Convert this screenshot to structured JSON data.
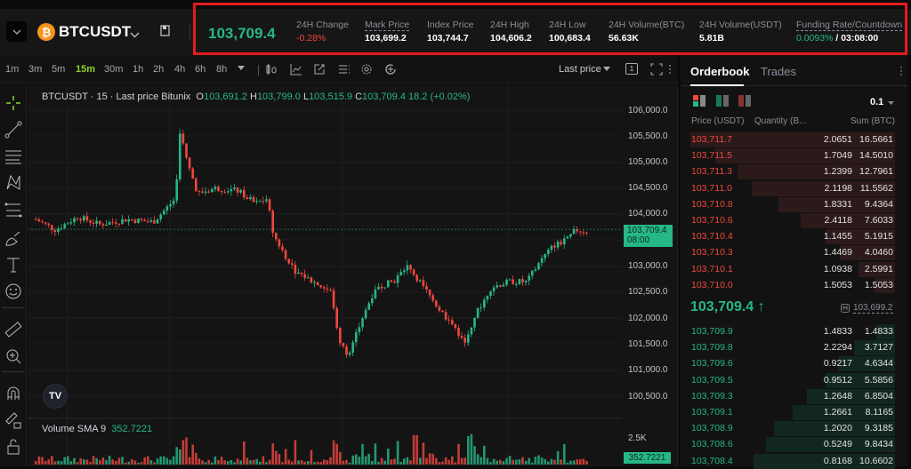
{
  "header": {
    "symbol": "BTCUSDT",
    "coin_glyph": "₿",
    "last_price": "103,709.4",
    "stats": [
      {
        "label": "24H Change",
        "value": "-0.28%"
      },
      {
        "label": "Mark Price",
        "value": "103,699.2"
      },
      {
        "label": "Index Price",
        "value": "103,744.7"
      },
      {
        "label": "24H High",
        "value": "104,606.2"
      },
      {
        "label": "24H Low",
        "value": "100,683.4"
      },
      {
        "label": "24H Volume(BTC)",
        "value": "56.63K"
      },
      {
        "label": "24H Volume(USDT)",
        "value": "5.81B"
      },
      {
        "label": "Funding Rate/Countdown",
        "value": "0.0093%",
        "countdown": "/ 03:08:00"
      }
    ]
  },
  "chart_toolbar": {
    "timeframes": [
      "1m",
      "3m",
      "5m",
      "15m",
      "30m",
      "1h",
      "2h",
      "4h",
      "6h",
      "8h"
    ],
    "active_timeframe": "15m",
    "price_type": "Last price",
    "layout_label": "1"
  },
  "chart": {
    "title": "BTCUSDT · 15 · Last price Bitunix",
    "ohlc": {
      "o_label": "O",
      "o": "103,691.2",
      "h_label": "H",
      "h": "103,799.0",
      "l_label": "L",
      "l": "103,515.9",
      "c_label": "C",
      "c": "103,709.4",
      "change": "18.2 (+0.02%)"
    },
    "y_ticks": [
      "106,000.0",
      "105,500.0",
      "105,000.0",
      "104,500.0",
      "104,000.0",
      "103,000.0",
      "102,500.0",
      "102,000.0",
      "101,500.0",
      "101,000.0",
      "100,500.0"
    ],
    "price_tag": {
      "price": "103,709.4",
      "time": "08:00"
    },
    "volume": {
      "label": "Volume SMA 9",
      "value": "352.7221",
      "axis_tick": "2.5K"
    },
    "logo_text": "TV",
    "colors": {
      "up": "#26b787",
      "down": "#f0473e",
      "bg": "#141414"
    }
  },
  "orderbook": {
    "tabs": [
      "Orderbook",
      "Trades"
    ],
    "precision": "0.1",
    "columns": [
      "Price (USDT)",
      "Quantity (B...",
      "Sum (BTC)"
    ],
    "asks": [
      {
        "price": "103,711.7",
        "qty": "2.0651",
        "sum": "16.5661",
        "depth": 100
      },
      {
        "price": "103,711.5",
        "qty": "1.7049",
        "sum": "14.5010",
        "depth": 88
      },
      {
        "price": "103,711.3",
        "qty": "1.2399",
        "sum": "12.7961",
        "depth": 77
      },
      {
        "price": "103,711.0",
        "qty": "2.1198",
        "sum": "11.5562",
        "depth": 70
      },
      {
        "price": "103,710.8",
        "qty": "1.8331",
        "sum": "9.4364",
        "depth": 57
      },
      {
        "price": "103,710.6",
        "qty": "2.4118",
        "sum": "7.6033",
        "depth": 46
      },
      {
        "price": "103,710.4",
        "qty": "1.1455",
        "sum": "5.1915",
        "depth": 34
      },
      {
        "price": "103,710.3",
        "qty": "1.4469",
        "sum": "4.0460",
        "depth": 27
      },
      {
        "price": "103,710.1",
        "qty": "1.0938",
        "sum": "2.5991",
        "depth": 18
      },
      {
        "price": "103,710.0",
        "qty": "1.5053",
        "sum": "1.5053",
        "depth": 10
      }
    ],
    "mid_price": "103,709.4 ↑",
    "mark_price": "103,699.2",
    "bids": [
      {
        "price": "103,709.9",
        "qty": "1.4833",
        "sum": "1.4833",
        "depth": 9
      },
      {
        "price": "103,709.8",
        "qty": "2.2294",
        "sum": "3.7127",
        "depth": 20
      },
      {
        "price": "103,709.6",
        "qty": "0.9217",
        "sum": "4.6344",
        "depth": 28
      },
      {
        "price": "103,709.5",
        "qty": "0.9512",
        "sum": "5.5856",
        "depth": 34
      },
      {
        "price": "103,709.3",
        "qty": "1.2648",
        "sum": "6.8504",
        "depth": 43
      },
      {
        "price": "103,709.1",
        "qty": "1.2661",
        "sum": "8.1165",
        "depth": 50
      },
      {
        "price": "103,708.9",
        "qty": "1.2020",
        "sum": "9.3185",
        "depth": 59
      },
      {
        "price": "103,708.6",
        "qty": "0.5249",
        "sum": "9.8434",
        "depth": 63
      },
      {
        "price": "103,708.4",
        "qty": "0.8168",
        "sum": "10.6602",
        "depth": 69
      }
    ]
  }
}
